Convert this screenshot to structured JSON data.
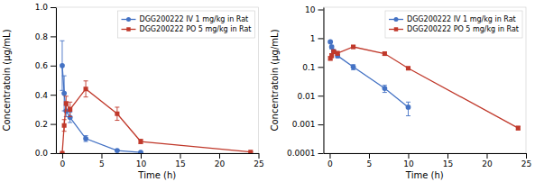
{
  "chart_data": [
    {
      "type": "line",
      "xlabel": "Time (h)",
      "ylabel": "Concentratoin (μg/mL)",
      "xlim": [
        -0.8,
        25
      ],
      "xticks": [
        0,
        5,
        10,
        15,
        20,
        25
      ],
      "ylim": [
        0,
        1.0
      ],
      "yticks": [
        {
          "value": 0,
          "label": "0.0"
        },
        0.2,
        0.4,
        0.6,
        0.8,
        {
          "value": 1.0,
          "label": "1.0"
        }
      ],
      "grid": false,
      "legend": "top-right",
      "series": [
        {
          "name": "DGG200222 IV 1 mg/kg in Rat",
          "color": "#4472c4",
          "marker": "circle",
          "x": [
            0,
            0.25,
            0.5,
            1,
            3,
            7,
            10
          ],
          "values": [
            0.6,
            0.41,
            0.29,
            0.245,
            0.1,
            0.018,
            0.005
          ],
          "errors": [
            0.17,
            0.12,
            0.04,
            0.035,
            0.02,
            0.004,
            0.002
          ]
        },
        {
          "name": "DGG200222 PO 5 mg/kg in Rat",
          "color": "#c0392b",
          "marker": "square",
          "x": [
            0,
            0.25,
            0.5,
            1,
            3,
            7,
            10,
            24
          ],
          "values": [
            0.0,
            0.19,
            0.34,
            0.3,
            0.44,
            0.27,
            0.08,
            0.008
          ],
          "errors": [
            0.0,
            0.04,
            0.05,
            0.05,
            0.055,
            0.045,
            0.015,
            0.001
          ]
        }
      ]
    },
    {
      "type": "line",
      "xlabel": "Time (h)",
      "ylabel": "Concentratoin (μg/mL)",
      "xlim": [
        -0.8,
        25
      ],
      "xticks": [
        0,
        5,
        10,
        15,
        20,
        25
      ],
      "log": "y",
      "ylim": [
        0.0001,
        12
      ],
      "yticks": [
        0.0001,
        0.001,
        0.01,
        0.1,
        1,
        10
      ],
      "grid": false,
      "legend": "top-right",
      "series": [
        {
          "name": "DGG200222 IV 1 mg/kg in Rat",
          "color": "#4472c4",
          "marker": "circle",
          "x": [
            0.083,
            0.25,
            0.5,
            1,
            3,
            7,
            10
          ],
          "values": [
            0.75,
            0.5,
            0.35,
            0.245,
            0.1,
            0.018,
            0.004
          ],
          "errors": [
            0.05,
            0.07,
            0.04,
            0.035,
            0.02,
            0.005,
            0.002
          ]
        },
        {
          "name": "DGG200222 PO 5 mg/kg in Rat",
          "color": "#c0392b",
          "marker": "square",
          "x": [
            0.083,
            0.25,
            0.5,
            1,
            3,
            7,
            10,
            24
          ],
          "values": [
            0.2,
            0.25,
            0.34,
            0.3,
            0.5,
            0.29,
            0.09,
            0.00075
          ],
          "errors": [
            0.03,
            0.04,
            0.05,
            0.04,
            0.06,
            0.04,
            0.01,
            0.0001
          ]
        }
      ]
    }
  ]
}
